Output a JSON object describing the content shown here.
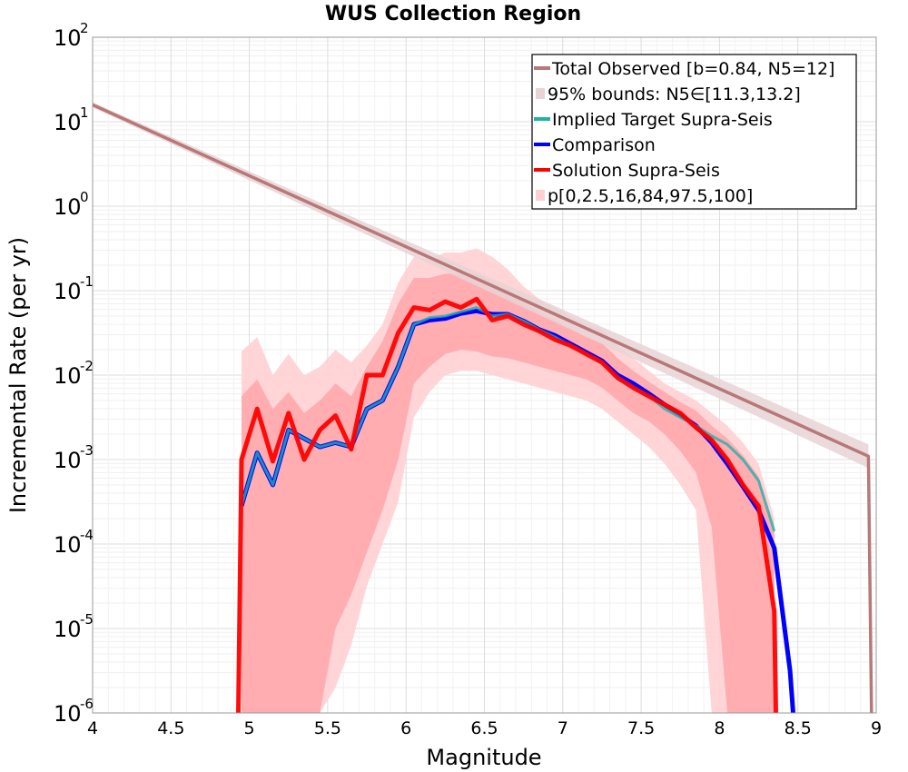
{
  "chart_data": {
    "type": "line",
    "title": "WUS Collection Region",
    "xlabel": "Magnitude",
    "ylabel": "Incremental Rate (per yr)",
    "xlim": [
      4,
      9
    ],
    "ylim_log10": [
      -6,
      2
    ],
    "y_scale": "log",
    "grid": true,
    "legend_position": "top-right",
    "x_ticks": [
      "4",
      "4.5",
      "5",
      "5.5",
      "6",
      "6.5",
      "7",
      "7.5",
      "8",
      "8.5",
      "9"
    ],
    "y_ticks": [
      {
        "base": "10",
        "exp": "-6"
      },
      {
        "base": "10",
        "exp": "-5"
      },
      {
        "base": "10",
        "exp": "-4"
      },
      {
        "base": "10",
        "exp": "-3"
      },
      {
        "base": "10",
        "exp": "-2"
      },
      {
        "base": "10",
        "exp": "-1"
      },
      {
        "base": "10",
        "exp": "0"
      },
      {
        "base": "10",
        "exp": "1"
      },
      {
        "base": "10",
        "exp": "2"
      }
    ],
    "colors": {
      "total_observed": "#b87878",
      "bounds_fill": "#e8d4d6",
      "implied_target": "#20b2aa",
      "comparison": "#0000ff",
      "solution": "#ff0000",
      "p_outer": "#ffd0d3",
      "p_inner": "#ffa8ac"
    },
    "legend": [
      {
        "label": "Total Observed [b=0.84, N5=12]",
        "style": "line",
        "color": "#b87878"
      },
      {
        "label": "95% bounds: N5∈[11.3,13.2]",
        "style": "fill",
        "color": "#e8d4d6"
      },
      {
        "label": "Implied Target Supra-Seis",
        "style": "line",
        "color": "#20b2aa"
      },
      {
        "label": "Comparison",
        "style": "line",
        "color": "#0000ff"
      },
      {
        "label": "Solution Supra-Seis",
        "style": "line",
        "color": "#ff0000"
      },
      {
        "label": "p[0,2.5,16,84,97.5,100]",
        "style": "fill",
        "color": "#ffd0d3"
      }
    ],
    "series": [
      {
        "name": "Total Observed [b=0.84, N5=12]",
        "x": [
          4.0,
          8.95,
          8.97
        ],
        "y_log10": [
          1.2,
          -2.96,
          -6.0
        ]
      },
      {
        "name": "95% bounds: N5∈[11.3,13.2]",
        "x": [
          4.0,
          8.95
        ],
        "y_log10_low": [
          1.17,
          -3.1
        ],
        "y_log10_high": [
          1.23,
          -2.82
        ]
      },
      {
        "name": "Implied Target Supra-Seis",
        "x": [
          4.95,
          5.05,
          5.15,
          5.25,
          5.35,
          5.45,
          5.55,
          5.65,
          5.75,
          5.85,
          5.95,
          6.05,
          6.15,
          6.25,
          6.35,
          6.45,
          6.55,
          6.65,
          6.75,
          6.85,
          6.95,
          7.05,
          7.15,
          7.25,
          7.35,
          7.45,
          7.55,
          7.65,
          7.75,
          7.85,
          7.95,
          8.05,
          8.15,
          8.25,
          8.35
        ],
        "y_log10": [
          -3.55,
          -2.92,
          -3.3,
          -2.65,
          -2.75,
          -2.85,
          -2.8,
          -2.85,
          -2.4,
          -2.3,
          -1.9,
          -1.4,
          -1.32,
          -1.3,
          -1.25,
          -1.2,
          -1.3,
          -1.28,
          -1.36,
          -1.46,
          -1.55,
          -1.65,
          -1.75,
          -1.85,
          -2.05,
          -2.15,
          -2.25,
          -2.4,
          -2.5,
          -2.6,
          -2.72,
          -2.82,
          -3.0,
          -3.25,
          -3.85
        ]
      },
      {
        "name": "Comparison",
        "x": [
          4.95,
          5.05,
          5.15,
          5.25,
          5.35,
          5.45,
          5.55,
          5.65,
          5.75,
          5.85,
          5.95,
          6.05,
          6.15,
          6.25,
          6.35,
          6.45,
          6.55,
          6.65,
          6.75,
          6.85,
          6.95,
          7.05,
          7.15,
          7.25,
          7.35,
          7.45,
          7.55,
          7.65,
          7.75,
          7.85,
          7.95,
          8.05,
          8.15,
          8.25,
          8.35,
          8.45,
          8.47
        ],
        "y_log10": [
          -3.55,
          -2.92,
          -3.3,
          -2.65,
          -2.75,
          -2.85,
          -2.8,
          -2.85,
          -2.4,
          -2.3,
          -1.9,
          -1.4,
          -1.35,
          -1.33,
          -1.27,
          -1.24,
          -1.28,
          -1.28,
          -1.36,
          -1.46,
          -1.53,
          -1.63,
          -1.73,
          -1.83,
          -2.0,
          -2.1,
          -2.22,
          -2.35,
          -2.47,
          -2.6,
          -2.8,
          -3.05,
          -3.32,
          -3.6,
          -4.05,
          -5.5,
          -6.0
        ]
      },
      {
        "name": "Solution Supra-Seis",
        "x": [
          4.93,
          4.95,
          5.05,
          5.15,
          5.25,
          5.35,
          5.45,
          5.55,
          5.65,
          5.75,
          5.85,
          5.95,
          6.05,
          6.15,
          6.25,
          6.35,
          6.45,
          6.55,
          6.65,
          6.75,
          6.85,
          6.95,
          7.05,
          7.15,
          7.25,
          7.35,
          7.45,
          7.55,
          7.65,
          7.75,
          7.85,
          7.95,
          8.05,
          8.15,
          8.25,
          8.35,
          8.36
        ],
        "y_log10": [
          -6.0,
          -3.0,
          -2.4,
          -3.02,
          -2.45,
          -3.0,
          -2.65,
          -2.48,
          -2.88,
          -2.0,
          -2.0,
          -1.5,
          -1.2,
          -1.23,
          -1.13,
          -1.2,
          -1.1,
          -1.35,
          -1.3,
          -1.4,
          -1.48,
          -1.58,
          -1.65,
          -1.75,
          -1.85,
          -2.03,
          -2.15,
          -2.25,
          -2.35,
          -2.45,
          -2.62,
          -2.77,
          -3.0,
          -3.3,
          -3.55,
          -4.8,
          -6.0
        ]
      }
    ],
    "percentile_bands": {
      "name": "p[0,2.5,16,84,97.5,100]",
      "x": [
        4.95,
        5.05,
        5.15,
        5.25,
        5.35,
        5.45,
        5.55,
        5.65,
        5.75,
        5.85,
        5.95,
        6.05,
        6.15,
        6.25,
        6.35,
        6.45,
        6.55,
        6.65,
        6.75,
        6.85,
        6.95,
        7.05,
        7.15,
        7.25,
        7.35,
        7.45,
        7.55,
        7.65,
        7.75,
        7.85,
        7.95,
        8.05,
        8.15,
        8.25,
        8.35
      ],
      "outer_upper_log10": [
        -1.72,
        -1.55,
        -2.0,
        -1.75,
        -2.0,
        -1.9,
        -1.7,
        -1.85,
        -1.65,
        -1.4,
        -0.9,
        -0.6,
        -0.62,
        -0.55,
        -0.55,
        -0.5,
        -0.6,
        -0.75,
        -0.95,
        -1.1,
        -1.2,
        -1.3,
        -1.4,
        -1.45,
        -1.65,
        -1.8,
        -1.95,
        -2.1,
        -2.2,
        -2.3,
        -2.45,
        -2.6,
        -2.8,
        -3.05,
        -3.7
      ],
      "outer_lower_log10": [
        -6.0,
        -6.0,
        -6.0,
        -6.0,
        -6.0,
        -6.0,
        -5.7,
        -5.2,
        -4.5,
        -4.0,
        -3.5,
        -2.5,
        -2.2,
        -2.0,
        -1.95,
        -1.95,
        -2.0,
        -2.05,
        -2.1,
        -2.15,
        -2.2,
        -2.25,
        -2.3,
        -2.4,
        -2.55,
        -2.7,
        -2.85,
        -3.05,
        -3.3,
        -3.6,
        -6.0,
        -6.0,
        -6.0,
        -6.0,
        -6.0
      ],
      "inner_upper_log10": [
        -2.25,
        -2.05,
        -2.4,
        -2.2,
        -2.45,
        -2.3,
        -2.1,
        -2.25,
        -1.9,
        -1.6,
        -1.15,
        -0.85,
        -0.85,
        -0.8,
        -0.8,
        -0.8,
        -0.9,
        -1.0,
        -1.15,
        -1.25,
        -1.35,
        -1.45,
        -1.55,
        -1.62,
        -1.8,
        -1.95,
        -2.08,
        -2.2,
        -2.32,
        -2.42,
        -2.6,
        -2.75,
        -2.95,
        -3.2,
        -3.85
      ],
      "inner_lower_log10": [
        -6.0,
        -6.0,
        -6.0,
        -6.0,
        -6.0,
        -6.0,
        -5.0,
        -4.6,
        -4.1,
        -3.6,
        -3.0,
        -2.1,
        -1.9,
        -1.75,
        -1.7,
        -1.72,
        -1.78,
        -1.8,
        -1.85,
        -1.9,
        -1.95,
        -2.0,
        -2.05,
        -2.15,
        -2.3,
        -2.45,
        -2.55,
        -2.7,
        -2.9,
        -3.15,
        -3.8,
        -6.0,
        -6.0,
        -6.0,
        -6.0
      ]
    }
  }
}
